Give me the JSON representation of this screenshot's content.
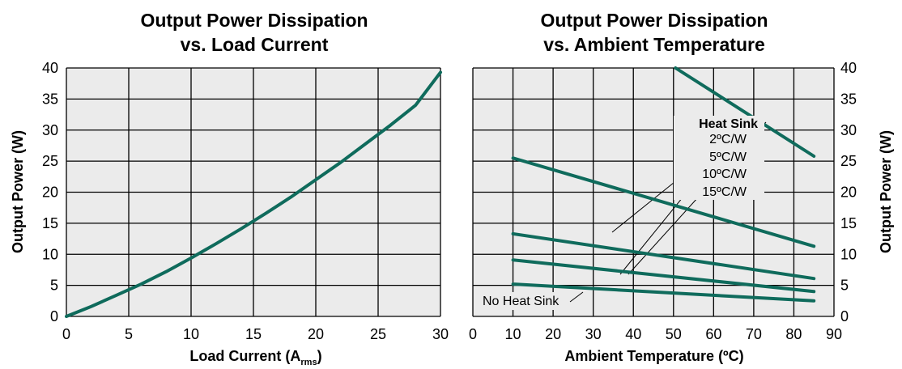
{
  "colors": {
    "curve": "#0f6b5c",
    "plot_bg": "#ebebeb",
    "grid": "#000000"
  },
  "chart_data": [
    {
      "type": "line",
      "title_lines": [
        "Output Power Dissipation",
        "vs. Load Current"
      ],
      "xlabel": "Load Current (A",
      "xlabel_sub": "rms",
      "xlabel_close": ")",
      "ylabel": "Output Power (W)",
      "xlim": [
        0,
        30
      ],
      "ylim": [
        0,
        40
      ],
      "xticks": [
        0,
        5,
        10,
        15,
        20,
        25,
        30
      ],
      "yticks": [
        0,
        5,
        10,
        15,
        20,
        25,
        30,
        35,
        40
      ],
      "grid": true,
      "series": [
        {
          "x": [
            0,
            2,
            4,
            6,
            8,
            10,
            12,
            14,
            16,
            18,
            20,
            22,
            24,
            26,
            28,
            30
          ],
          "y": [
            0,
            1.6,
            3.4,
            5.2,
            7.2,
            9.4,
            11.7,
            14.1,
            16.6,
            19.2,
            22.0,
            24.8,
            27.8,
            30.8,
            34.0,
            39.3
          ]
        }
      ]
    },
    {
      "type": "line",
      "title_lines": [
        "Output Power Dissipation",
        "vs. Ambient Temperature"
      ],
      "xlabel": "Ambient Temperature (ºC)",
      "ylabel": "Output Power (W)",
      "xlim": [
        0,
        90
      ],
      "ylim": [
        0,
        40
      ],
      "xticks": [
        0,
        10,
        20,
        30,
        40,
        50,
        60,
        70,
        80,
        90
      ],
      "yticks": [
        0,
        5,
        10,
        15,
        20,
        25,
        30,
        35,
        40
      ],
      "grid": true,
      "legend_title": "Heat Sink",
      "series": [
        {
          "name": "2ºC/W",
          "x": [
            50.5,
            85
          ],
          "y": [
            40,
            25.8
          ]
        },
        {
          "name": "5ºC/W",
          "x": [
            10,
            85
          ],
          "y": [
            25.5,
            11.3
          ]
        },
        {
          "name": "10ºC/W",
          "x": [
            10,
            85
          ],
          "y": [
            13.3,
            6.1
          ]
        },
        {
          "name": "15ºC/W",
          "x": [
            10,
            85
          ],
          "y": [
            9.1,
            4.0
          ]
        },
        {
          "name": "No Heat Sink",
          "x": [
            10,
            85
          ],
          "y": [
            5.2,
            2.5
          ]
        }
      ]
    }
  ]
}
